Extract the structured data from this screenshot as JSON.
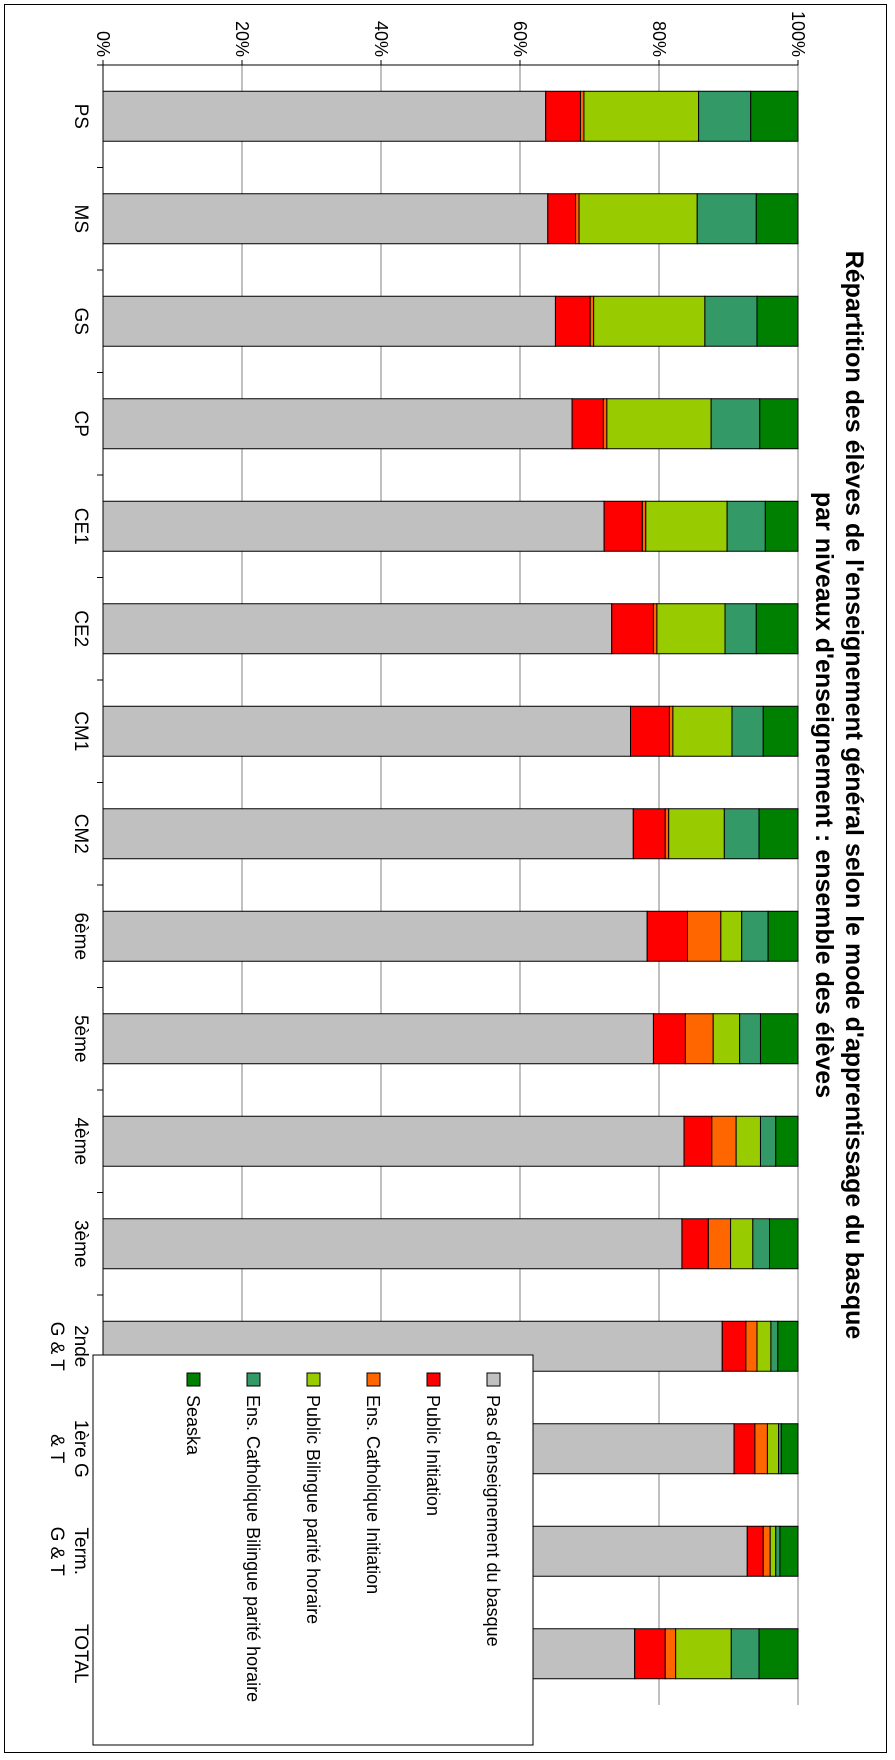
{
  "chart_data": {
    "type": "bar",
    "stacked": true,
    "orientation": "stacked columns (100%), image rotated 90° clockwise",
    "title_lines": [
      "Répartition des élèves de l'enseignement général selon le mode d'apprentissage du basque",
      "par niveaux d'enseignement : ensemble des élèves"
    ],
    "categories": [
      "PS",
      "MS",
      "GS",
      "CP",
      "CE1",
      "CE2",
      "CM1",
      "CM2",
      "6ème",
      "5ème",
      "4ème",
      "3ème",
      "2nde G & T",
      "1ère G & T",
      "Term. G & T",
      "TOTAL"
    ],
    "category_label_lines": [
      [
        "PS"
      ],
      [
        "MS"
      ],
      [
        "GS"
      ],
      [
        "CP"
      ],
      [
        "CE1"
      ],
      [
        "CE2"
      ],
      [
        "CM1"
      ],
      [
        "CM2"
      ],
      [
        "6ème"
      ],
      [
        "5ème"
      ],
      [
        "4ème"
      ],
      [
        "3ème"
      ],
      [
        "2nde",
        "G & T"
      ],
      [
        "1ère G",
        "& T"
      ],
      [
        "Term.",
        "G & T"
      ],
      [
        "TOTAL"
      ]
    ],
    "value_axis": {
      "ticks": [
        "0%",
        "20%",
        "40%",
        "60%",
        "80%",
        "100%"
      ],
      "range": [
        0,
        100
      ],
      "unit": "%"
    },
    "grid": true,
    "legend_position": "top-right",
    "series": [
      {
        "name": "Pas d'enseignement du basque",
        "color": "#c0c0c0",
        "values": [
          63.7,
          64.0,
          65.1,
          67.5,
          72.1,
          73.2,
          75.9,
          76.3,
          78.3,
          79.2,
          83.6,
          83.3,
          89.1,
          90.8,
          92.7,
          76.5
        ]
      },
      {
        "name": "Public Initiation",
        "color": "#ff0000",
        "values": [
          5.0,
          4.0,
          5.0,
          4.5,
          5.5,
          6.0,
          5.6,
          4.6,
          5.8,
          4.6,
          4.0,
          3.8,
          3.4,
          3.0,
          2.3,
          4.4
        ]
      },
      {
        "name": "Ens. Catholique Initiation",
        "color": "#ff6600",
        "values": [
          0.5,
          0.5,
          0.5,
          0.5,
          0.5,
          0.5,
          0.5,
          0.5,
          4.8,
          4.0,
          3.5,
          3.2,
          1.6,
          1.8,
          1.0,
          1.5
        ]
      },
      {
        "name": "Public Bilingue parité horaire",
        "color": "#99cc00",
        "values": [
          16.5,
          17.0,
          16.0,
          15.0,
          11.7,
          9.8,
          8.5,
          8.0,
          3.0,
          3.8,
          3.5,
          3.2,
          2.0,
          1.6,
          0.8,
          8.0
        ]
      },
      {
        "name": "Ens. Catholique Bilingue parité horaire",
        "color": "#339966",
        "values": [
          7.5,
          8.5,
          7.5,
          7.0,
          5.5,
          4.5,
          4.5,
          5.0,
          3.8,
          3.0,
          2.2,
          2.4,
          1.0,
          0.4,
          0.6,
          4.0
        ]
      },
      {
        "name": "Seaska",
        "color": "#008000",
        "values": [
          6.8,
          6.0,
          5.9,
          5.5,
          4.7,
          6.0,
          5.0,
          5.6,
          4.3,
          5.4,
          3.2,
          4.1,
          2.9,
          2.4,
          2.6,
          5.6
        ]
      }
    ]
  }
}
